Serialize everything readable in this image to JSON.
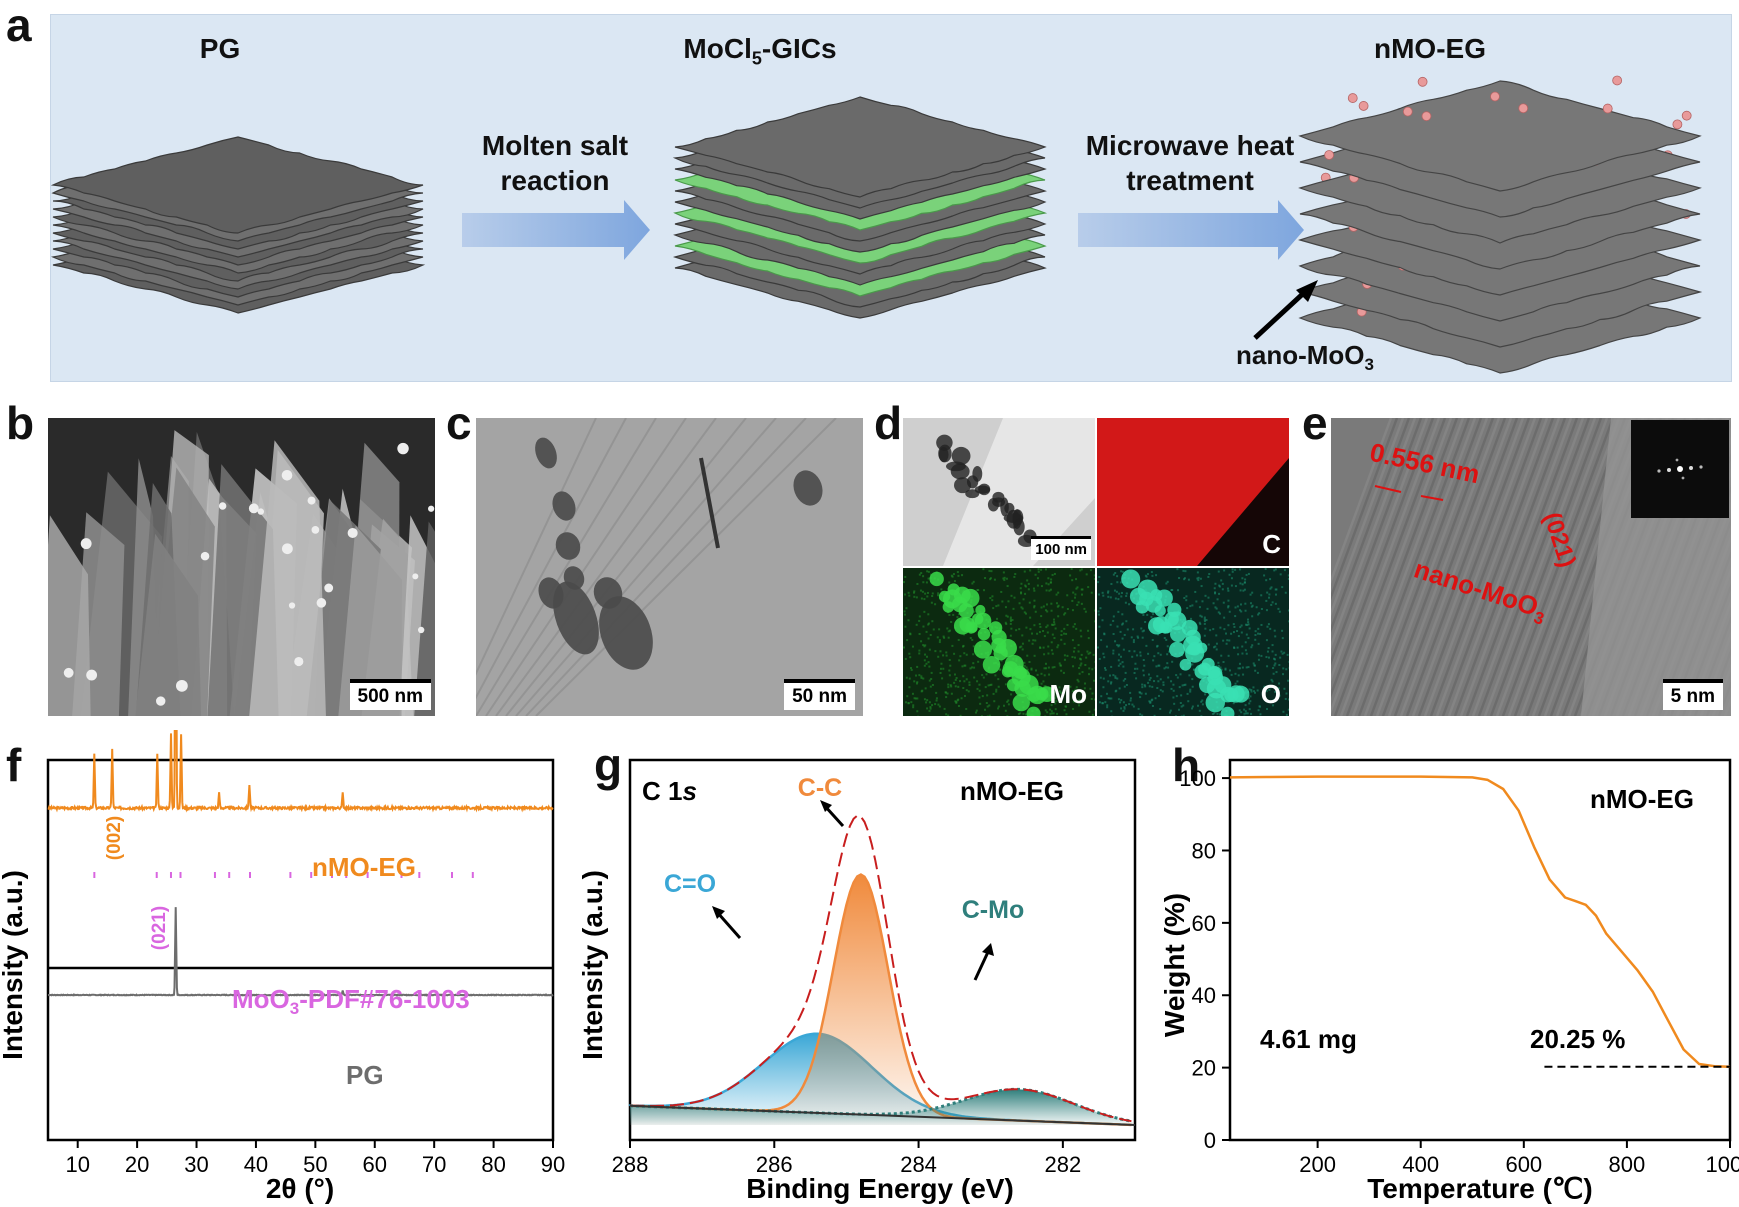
{
  "panel_labels": {
    "a": "a",
    "b": "b",
    "c": "c",
    "d": "d",
    "e": "e",
    "f": "f",
    "g": "g",
    "h": "h"
  },
  "panel_a": {
    "stage1": "PG",
    "stage2": "MoCl₅-GICs",
    "stage3": "nMO-EG",
    "arrow1_line1": "Molten salt",
    "arrow1_line2": "reaction",
    "arrow2_line1": "Microwave heat",
    "arrow2_line2": "treatment",
    "pointer_label": "nano-MoO₃",
    "colors": {
      "background": "#dbe7f3",
      "graphite": "#6d6d6d",
      "intercalant": "#6fcf6a",
      "particle": "#e89a9a",
      "arrow": "#8fb3e3"
    }
  },
  "panel_b": {
    "scale": "500 nm"
  },
  "panel_c": {
    "scale": "50 nm"
  },
  "panel_d": {
    "scale": "100 nm",
    "map_c": "C",
    "map_mo": "Mo",
    "map_o": "O"
  },
  "panel_e": {
    "spacing": "0.556 nm",
    "plane": "(021)",
    "particle": "nano-MoO₃",
    "scale": "5 nm"
  },
  "chart_data": [
    {
      "panel": "f",
      "type": "line",
      "xlabel": "2θ (°)",
      "ylabel": "Intensity (a.u.)",
      "xlim": [
        5,
        90
      ],
      "xticks": [
        10,
        20,
        30,
        40,
        50,
        60,
        70,
        80,
        90
      ],
      "series": [
        {
          "name": "nMO-EG",
          "color": "#f08a1e",
          "peaks": [
            {
              "x": 12.8,
              "h": 0.18
            },
            {
              "x": 15.8,
              "h": 0.2
            },
            {
              "x": 23.4,
              "h": 0.18
            },
            {
              "x": 25.7,
              "h": 0.25
            },
            {
              "x": 26.5,
              "h": 1.0
            },
            {
              "x": 27.4,
              "h": 0.25
            },
            {
              "x": 33.8,
              "h": 0.05
            },
            {
              "x": 38.9,
              "h": 0.08
            },
            {
              "x": 54.6,
              "h": 0.05
            }
          ]
        },
        {
          "name": "MoO₃-PDF#76-1003",
          "color": "#d966e0",
          "sticks": [
            12.8,
            23.3,
            25.7,
            27.3,
            33.1,
            35.5,
            39.0,
            45.8,
            49.3,
            52.8,
            55.2,
            58.8,
            64.5,
            67.5,
            73.0,
            76.5
          ]
        },
        {
          "name": "PG",
          "color": "#6d6d6d",
          "peaks": [
            {
              "x": 26.5,
              "h": 1.0
            },
            {
              "x": 54.6,
              "h": 0.05
            }
          ]
        }
      ],
      "annotations": [
        "(002)",
        "(021)"
      ]
    },
    {
      "panel": "g",
      "type": "area",
      "title": "C 1s",
      "label": "nMO-EG",
      "xlabel": "Binding Energy (eV)",
      "ylabel": "Intensity (a.u.)",
      "xlim": [
        288,
        281
      ],
      "xticks": [
        288,
        286,
        284,
        282
      ],
      "series": [
        {
          "name": "C-C",
          "center": 284.8,
          "height": 1.0,
          "sigma": 0.38,
          "color": "#f08a3c"
        },
        {
          "name": "C=O",
          "center": 285.4,
          "height": 0.33,
          "sigma": 0.75,
          "color": "#3aa7d6"
        },
        {
          "name": "C-Mo",
          "center": 282.6,
          "height": 0.13,
          "sigma": 0.75,
          "color": "#2f7f7c"
        }
      ]
    },
    {
      "panel": "h",
      "type": "line",
      "label": "nMO-EG",
      "xlabel": "Temperature (℃)",
      "ylabel": "Weight (%)",
      "xlim": [
        30,
        1000
      ],
      "ylim": [
        0,
        105
      ],
      "xticks": [
        200,
        400,
        600,
        800,
        1000
      ],
      "yticks": [
        0,
        20,
        40,
        60,
        80,
        100
      ],
      "series": [
        {
          "name": "nMO-EG",
          "color": "#f08a1e",
          "x": [
            30,
            100,
            200,
            300,
            400,
            500,
            530,
            560,
            590,
            620,
            650,
            680,
            700,
            720,
            740,
            760,
            790,
            820,
            850,
            880,
            910,
            940,
            970,
            1000
          ],
          "y": [
            100.2,
            100.3,
            100.4,
            100.4,
            100.4,
            100.2,
            99.5,
            97,
            91,
            81,
            72,
            67,
            66,
            65,
            62,
            57,
            52,
            47,
            41,
            33,
            25,
            21,
            20.4,
            20.25
          ]
        }
      ],
      "annotations": [
        "4.61 mg",
        "20.25 %"
      ]
    }
  ]
}
